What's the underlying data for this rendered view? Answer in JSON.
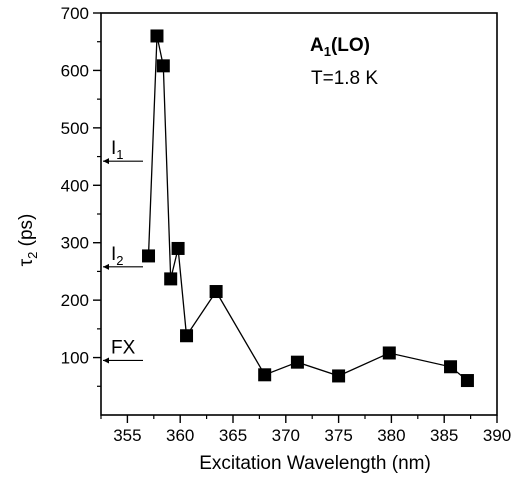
{
  "chart_data": {
    "type": "scatter",
    "xlabel": "Excitation Wavelength (nm)",
    "ylabel_main": "τ",
    "ylabel_sub": "2",
    "ylabel_unit": " (ps)",
    "xlim": [
      352.5,
      390
    ],
    "ylim": [
      0,
      700
    ],
    "x_ticks": [
      355,
      360,
      365,
      370,
      375,
      380,
      385,
      390
    ],
    "y_ticks": [
      100,
      200,
      300,
      400,
      500,
      600,
      700
    ],
    "grid": false,
    "markers": "filled-square",
    "line": true,
    "series": [
      {
        "x": [
          357.0,
          357.8,
          358.4,
          359.1,
          359.8,
          360.6,
          363.4,
          368.0,
          371.1,
          375.0,
          379.8,
          385.6,
          387.2
        ],
        "y": [
          277,
          660,
          608,
          237,
          290,
          138,
          215,
          70,
          92,
          68,
          108,
          84,
          60
        ]
      }
    ],
    "annotations": {
      "title_main": "A",
      "title_sub": "1",
      "title_rest": "(LO)",
      "temperature": "T=1.8 K",
      "levels": [
        {
          "main": "I",
          "sub": "1",
          "value": 442
        },
        {
          "main": "I",
          "sub": "2",
          "value": 258
        },
        {
          "main": "FX",
          "sub": "",
          "value": 95
        }
      ]
    }
  }
}
